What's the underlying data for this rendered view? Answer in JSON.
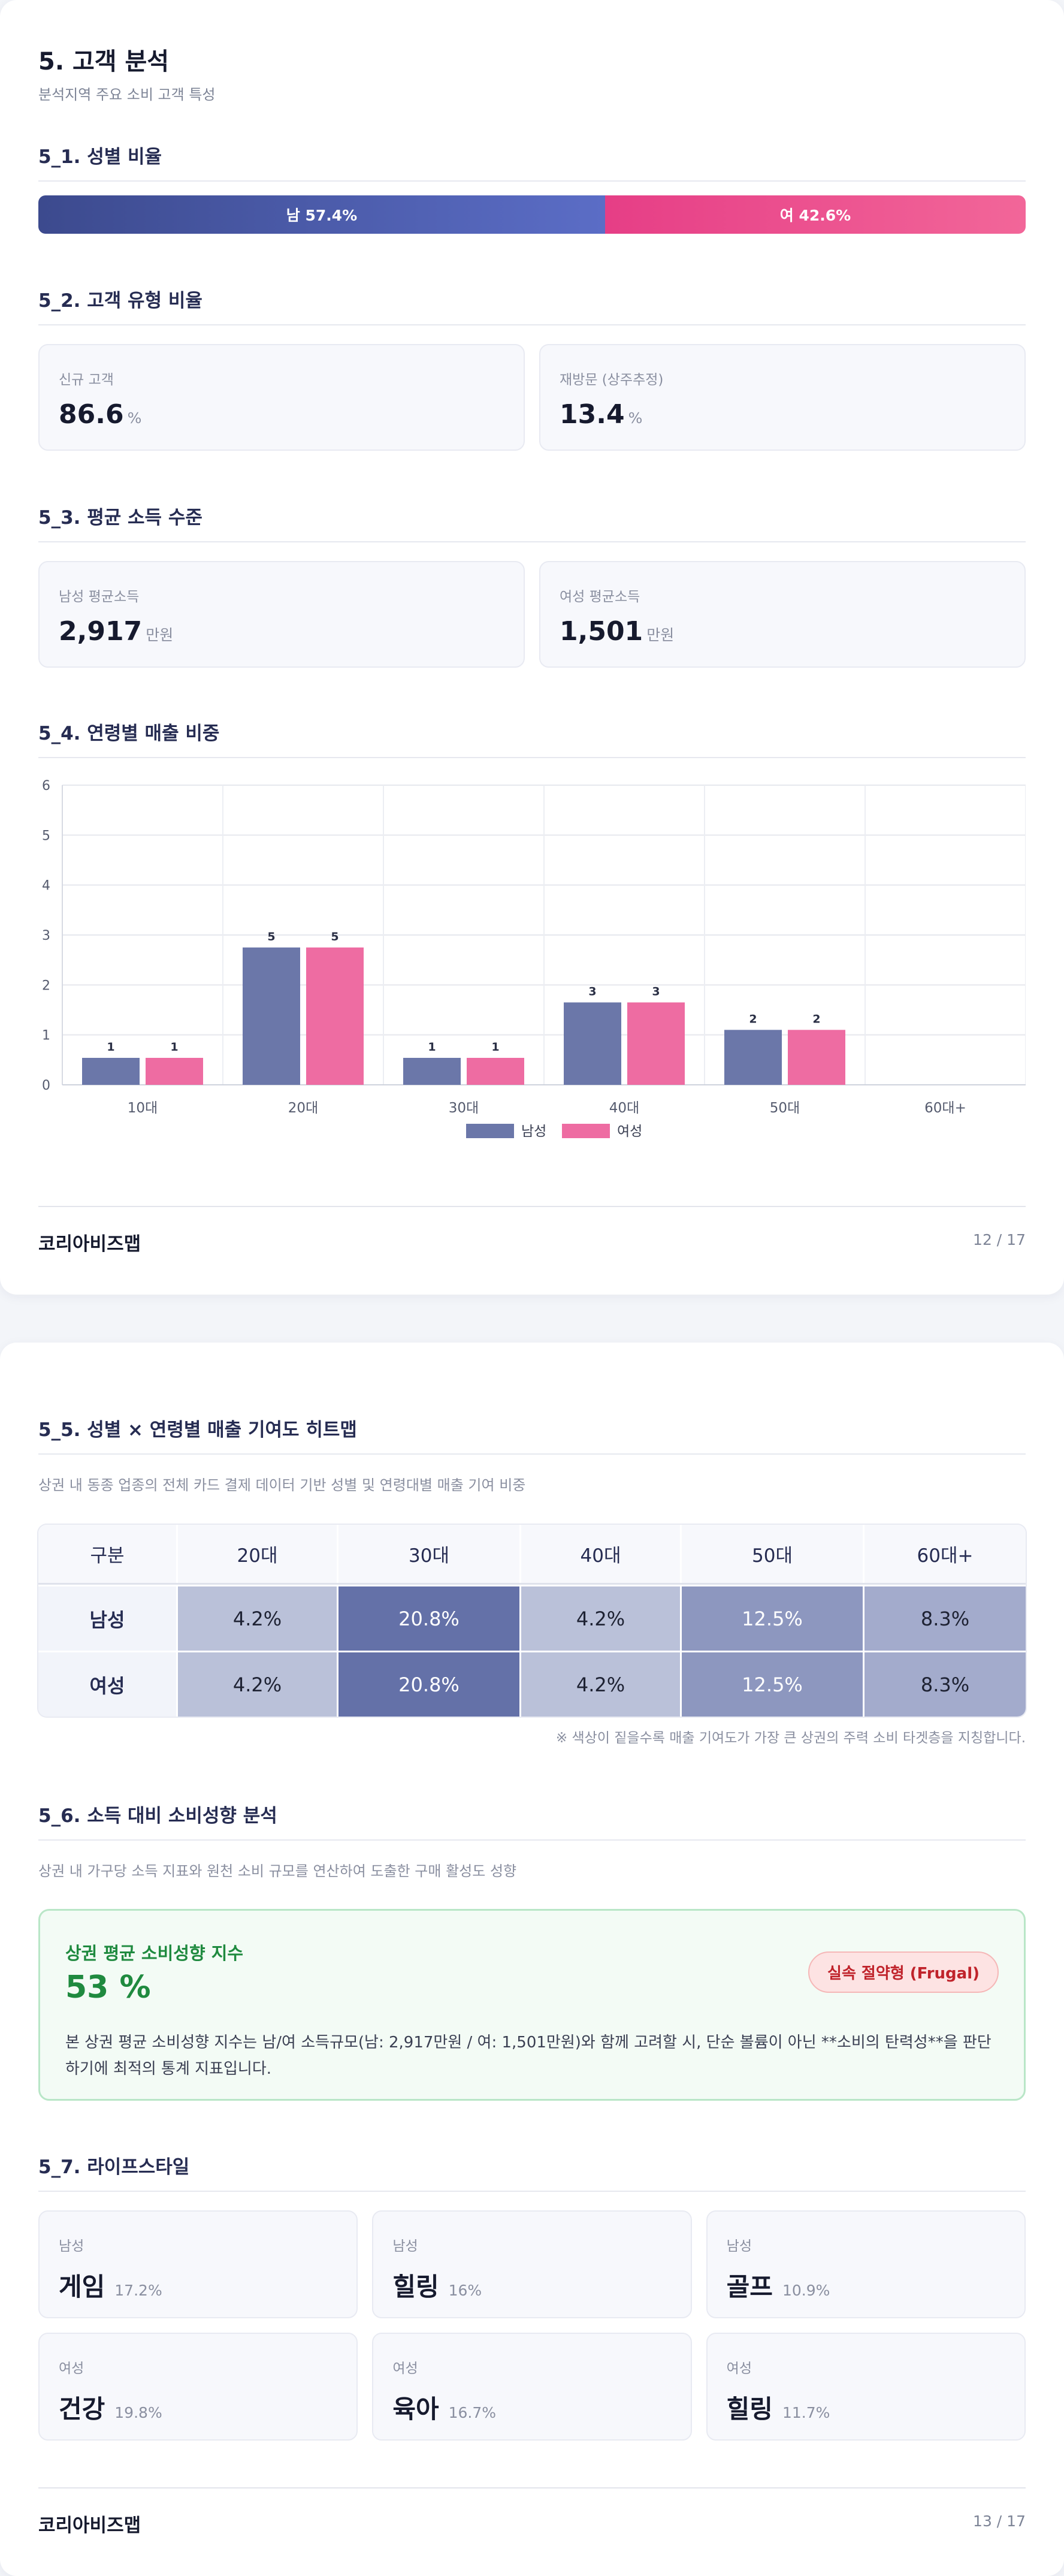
{
  "page1": {
    "title": "5. 고객 분석",
    "subtitle": "분석지역 주요 소비 고객 특성",
    "gender_section": {
      "title": "5_1. 성별 비율",
      "male_label": "남 57.4%",
      "female_label": "여 42.6%",
      "male_ratio": 57.4,
      "female_ratio": 42.6,
      "male_color": "#4a5aad",
      "female_color": "#ec4f8d"
    },
    "customer_type_section": {
      "title": "5_2. 고객 유형 비율",
      "cards": [
        {
          "label": "신규 고객",
          "value": "86.6",
          "unit": "%"
        },
        {
          "label": "재방문 (상주추정)",
          "value": "13.4",
          "unit": "%"
        }
      ]
    },
    "income_section": {
      "title": "5_3. 평균 소득 수준",
      "cards": [
        {
          "label": "남성 평균소득",
          "value": "2,917",
          "unit": "만원"
        },
        {
          "label": "여성 평균소득",
          "value": "1,501",
          "unit": "만원"
        }
      ]
    },
    "age_section": {
      "title": "5_4. 연령별 매출 비중"
    },
    "footer": {
      "brand": "코리아비즈맵",
      "page": "12 / 17"
    }
  },
  "chart_data": {
    "type": "bar",
    "title": "",
    "xlabel": "",
    "ylabel": "",
    "categories": [
      "10대",
      "20대",
      "30대",
      "40대",
      "50대",
      "60대+"
    ],
    "series": [
      {
        "name": "남성",
        "values": [
          0.54,
          2.75,
          0.54,
          1.65,
          1.1,
          0
        ],
        "data_labels": [
          "1",
          "5",
          "1",
          "3",
          "2",
          ""
        ],
        "color": "#6b77a9"
      },
      {
        "name": "여성",
        "values": [
          0.54,
          2.75,
          0.54,
          1.65,
          1.1,
          0
        ],
        "data_labels": [
          "1",
          "5",
          "1",
          "3",
          "2",
          ""
        ],
        "color": "#ee6ca2"
      }
    ],
    "yticks": [
      "0",
      "1",
      "2",
      "3",
      "4",
      "5",
      "6"
    ],
    "ylim": [
      0,
      6
    ],
    "grid": true,
    "legend": "bottom-center"
  },
  "page2": {
    "heatmap_section": {
      "title": "5_5. 성별 × 연령별 매출 기여도 히트맵",
      "description": "상권 내 동종 업종의 전체 카드 결제 데이터 기반 성별 및 연령대별 매출 기여 비중",
      "headers": [
        "구분",
        "20대",
        "30대",
        "40대",
        "50대",
        "60대+"
      ],
      "rows": [
        {
          "label": "남성",
          "cells": [
            {
              "text": "4.2%",
              "value": 4.2
            },
            {
              "text": "20.8%",
              "value": 20.8
            },
            {
              "text": "4.2%",
              "value": 4.2
            },
            {
              "text": "12.5%",
              "value": 12.5
            },
            {
              "text": "8.3%",
              "value": 8.3
            }
          ]
        },
        {
          "label": "여성",
          "cells": [
            {
              "text": "4.2%",
              "value": 4.2
            },
            {
              "text": "20.8%",
              "value": 20.8
            },
            {
              "text": "4.2%",
              "value": 4.2
            },
            {
              "text": "12.5%",
              "value": 12.5
            },
            {
              "text": "8.3%",
              "value": 8.3
            }
          ]
        }
      ],
      "note": "※ 색상이 짙을수록 매출 기여도가 가장 큰 상권의 주력 소비 타겟층을 지칭합니다."
    },
    "spending_section": {
      "title": "5_6. 소득 대비 소비성향 분석",
      "description": "상권 내 가구당 소득 지표와 원천 소비 규모를 연산하여 도출한 구매 활성도 성향",
      "card_title": "상권 평균 소비성향 지수",
      "card_value": "53 %",
      "badge": "실속 절약형 (Frugal)",
      "card_desc": "본 상권 평균 소비성향 지수는 남/여 소득규모(남: 2,917만원 / 여: 1,501만원)와 함께 고려할 시, 단순 볼륨이 아닌 **소비의 탄력성**을 판단하기에 최적의 통계 지표입니다."
    },
    "lifestyle_section": {
      "title": "5_7. 라이프스타일",
      "items": [
        {
          "gender": "남성",
          "name": "게임",
          "pct": "17.2%"
        },
        {
          "gender": "남성",
          "name": "힐링",
          "pct": "16%"
        },
        {
          "gender": "남성",
          "name": "골프",
          "pct": "10.9%"
        },
        {
          "gender": "여성",
          "name": "건강",
          "pct": "19.8%"
        },
        {
          "gender": "여성",
          "name": "육아",
          "pct": "16.7%"
        },
        {
          "gender": "여성",
          "name": "힐링",
          "pct": "11.7%"
        }
      ]
    },
    "footer": {
      "brand": "코리아비즈맵",
      "page": "13 / 17"
    }
  }
}
